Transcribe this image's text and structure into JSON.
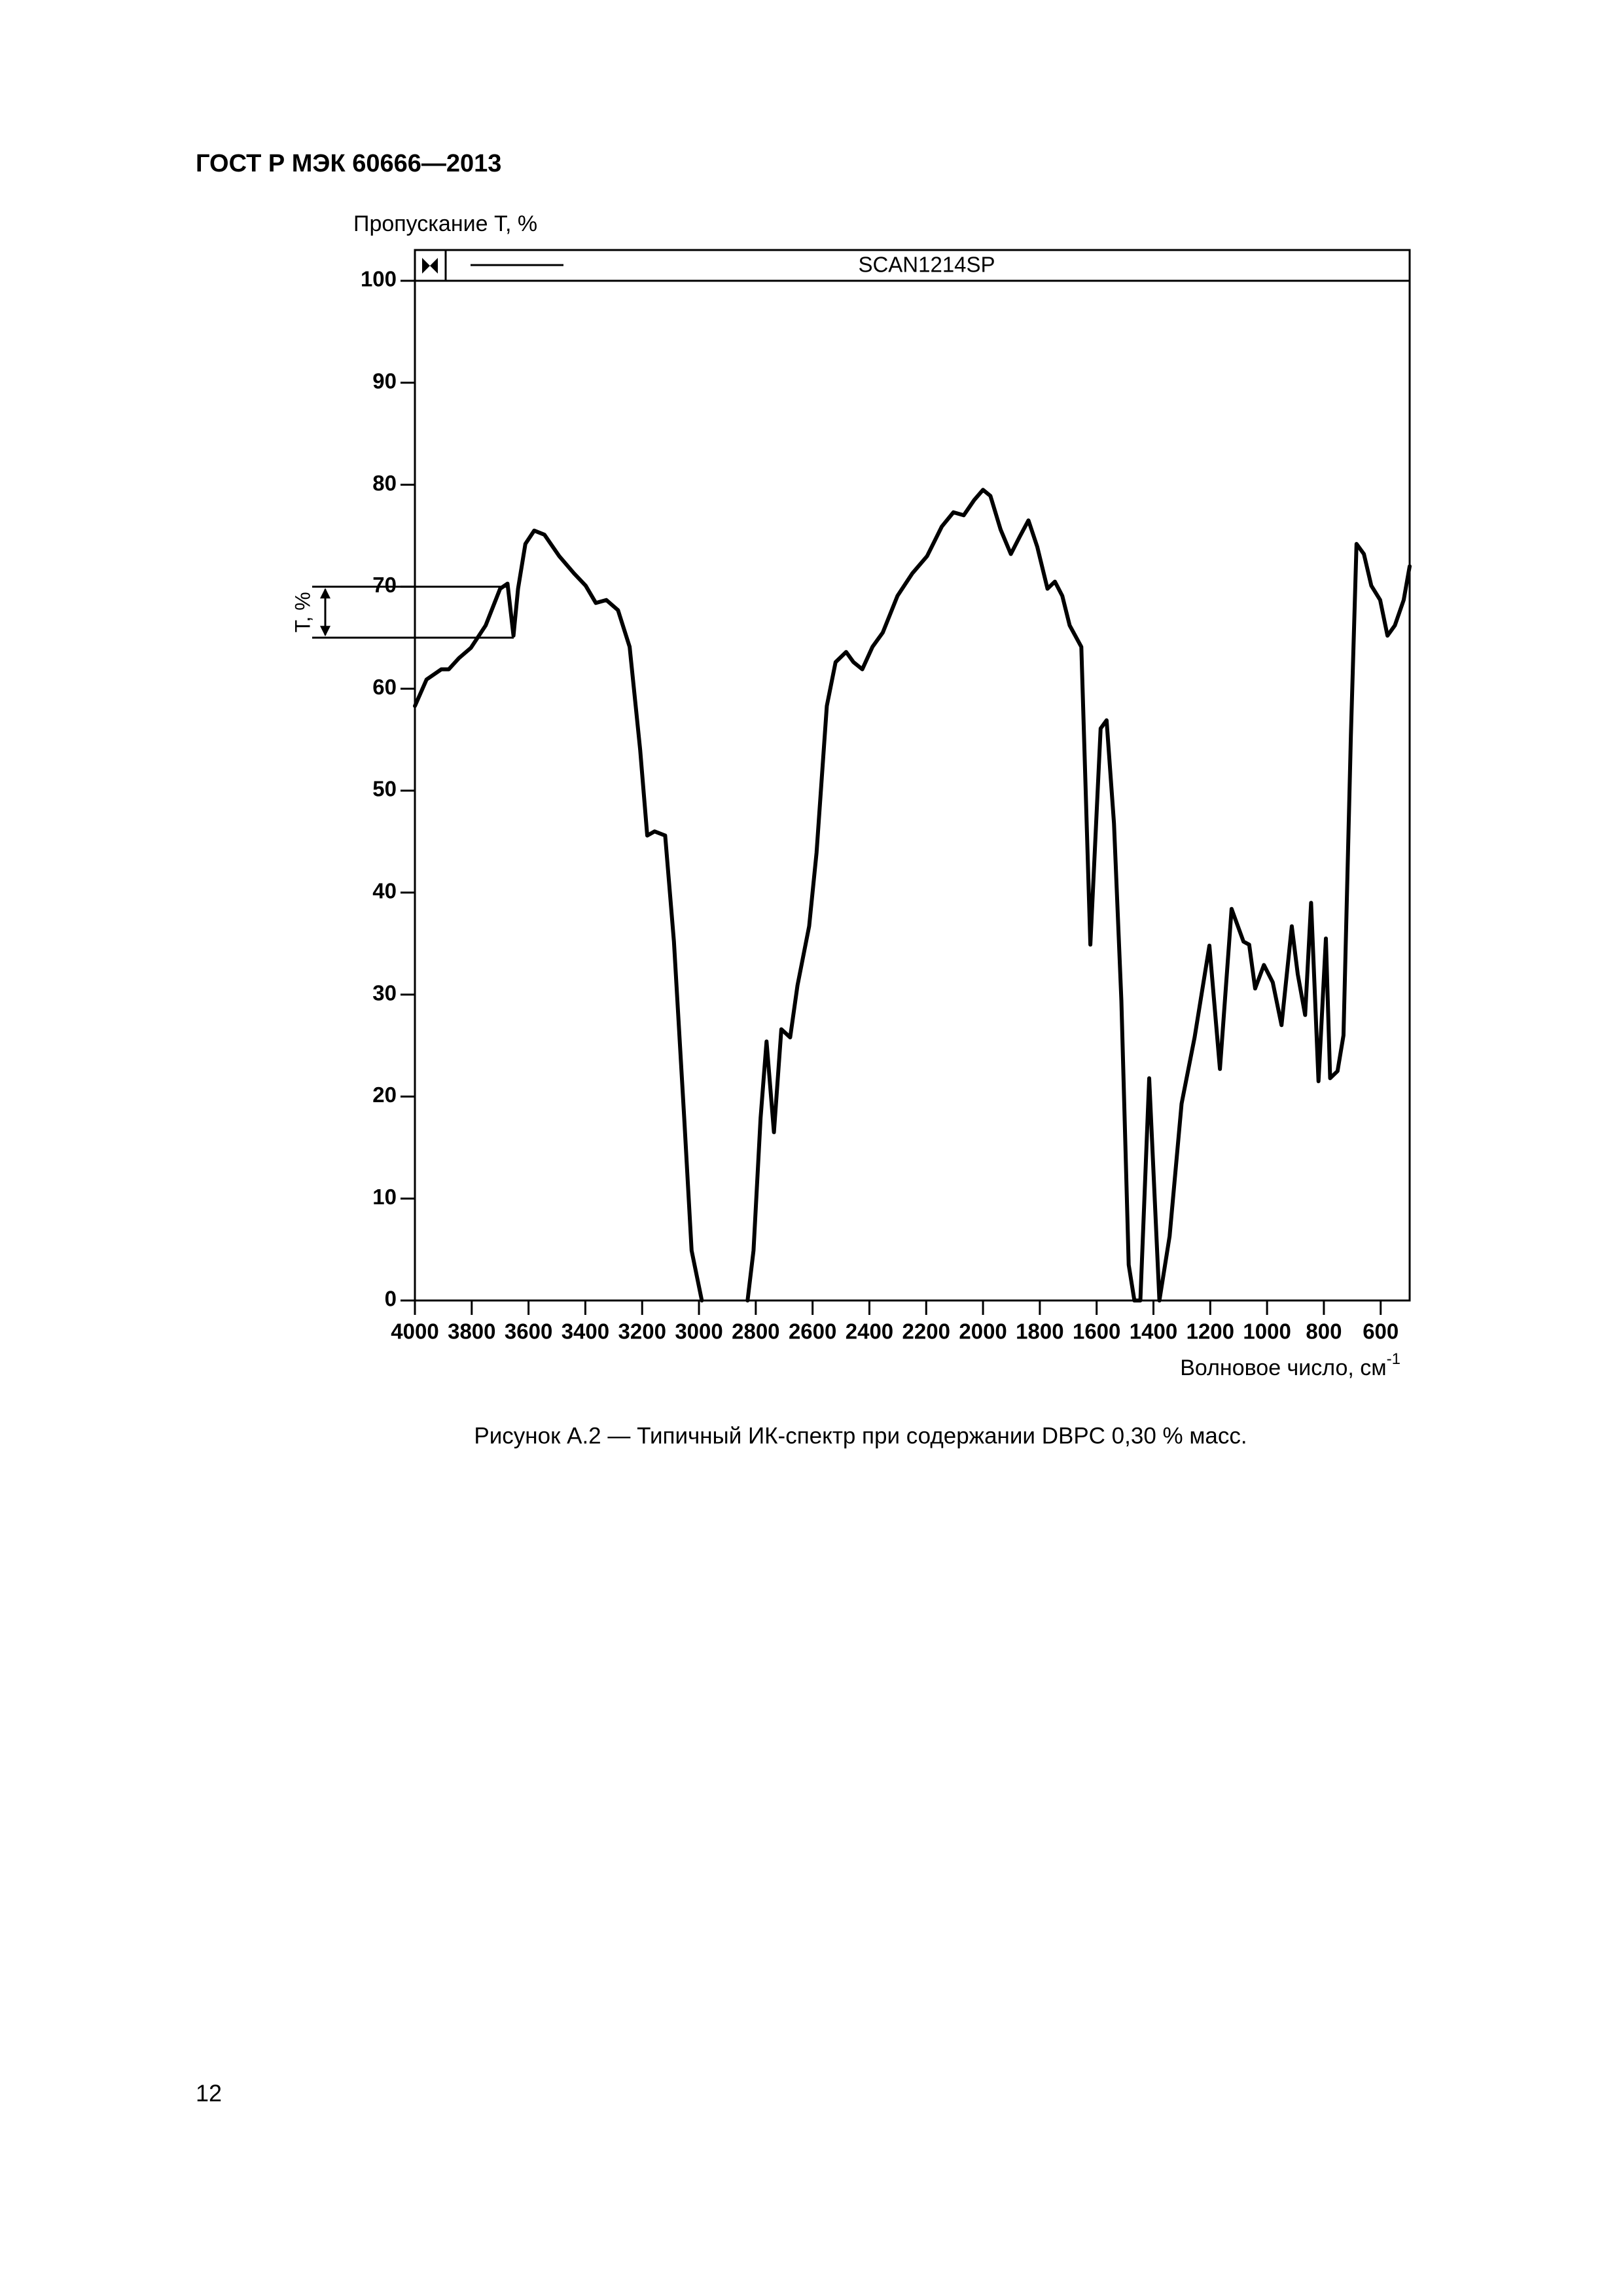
{
  "header": "ГОСТ Р МЭК 60666—2013",
  "chart_data": {
    "type": "line",
    "ylabel": "Пропускание T, %",
    "xlabel": {
      "text": "Волновое число, см",
      "sup": "-1"
    },
    "annotation": {
      "text": "T, %",
      "from": 70,
      "to": 65
    },
    "xlim": [
      4000,
      498
    ],
    "ylim": [
      0,
      100
    ],
    "xticks": [
      4000,
      3800,
      3600,
      3400,
      3200,
      3000,
      2800,
      2600,
      2400,
      2200,
      2000,
      1800,
      1600,
      1400,
      1200,
      1000,
      800,
      600
    ],
    "yticks": [
      0,
      10,
      20,
      30,
      40,
      50,
      60,
      70,
      80,
      90,
      100
    ],
    "x": [
      4000,
      3959,
      3907,
      3881,
      3845,
      3803,
      3751,
      3700,
      3674,
      3653,
      3637,
      3611,
      3580,
      3544,
      3492,
      3440,
      3399,
      3363,
      3326,
      3285,
      3244,
      3207,
      3182,
      3156,
      3119,
      3088,
      3052,
      3026,
      2990,
      2910,
      2829,
      2808,
      2783,
      2762,
      2736,
      2710,
      2679,
      2653,
      2612,
      2586,
      2550,
      2519,
      2482,
      2456,
      2425,
      2389,
      2353,
      2301,
      2249,
      2197,
      2145,
      2104,
      2068,
      2031,
      2000,
      1974,
      1938,
      1902,
      1871,
      1840,
      1809,
      1773,
      1747,
      1721,
      1695,
      1654,
      1622,
      1586,
      1565,
      1539,
      1513,
      1487,
      1467,
      1446,
      1415,
      1379,
      1343,
      1301,
      1255,
      1203,
      1166,
      1125,
      1083,
      1063,
      1042,
      1011,
      980,
      949,
      913,
      892,
      866,
      845,
      819,
      793,
      778,
      752,
      731,
      705,
      685,
      659,
      633,
      602,
      576,
      550,
      519,
      498
    ],
    "series": [
      {
        "name": "SCAN1214SP",
        "color": "#000000",
        "values": [
          58.3,
          60.9,
          61.9,
          61.9,
          63,
          64,
          66.2,
          69.8,
          70.3,
          65.2,
          69.8,
          74.2,
          75.5,
          75.1,
          73,
          71.3,
          70.1,
          68.4,
          68.7,
          67.7,
          64.1,
          54,
          45.6,
          46,
          45.6,
          35.2,
          17.9,
          4.9,
          0,
          null,
          0,
          4.9,
          17.9,
          25.4,
          16.5,
          26.6,
          25.8,
          30.9,
          36.7,
          43.9,
          58.3,
          62.6,
          63.6,
          62.6,
          61.9,
          64.1,
          65.5,
          69.1,
          71.3,
          73,
          75.9,
          77.3,
          77,
          78.5,
          79.5,
          78.9,
          75.6,
          73.2,
          74.9,
          76.5,
          73.9,
          69.8,
          70.5,
          69.1,
          66.2,
          64.1,
          34.9,
          56.1,
          56.9,
          46.8,
          29.4,
          3.5,
          0,
          0,
          21.8,
          0,
          6.3,
          19.3,
          25.8,
          34.8,
          22.7,
          38.4,
          35.2,
          34.9,
          30.6,
          32.9,
          31.2,
          27,
          36.7,
          32,
          28,
          39,
          21.5,
          35.5,
          21.8,
          22.5,
          26,
          55.4,
          74.2,
          73.2,
          70.1,
          68.7,
          65.2,
          66.2,
          68.7,
          72
        ]
      }
    ]
  },
  "caption": "Рисунок А.2 — Типичный ИК-спектр при содержании DBPC 0,30 % масс.",
  "page_number": "12"
}
